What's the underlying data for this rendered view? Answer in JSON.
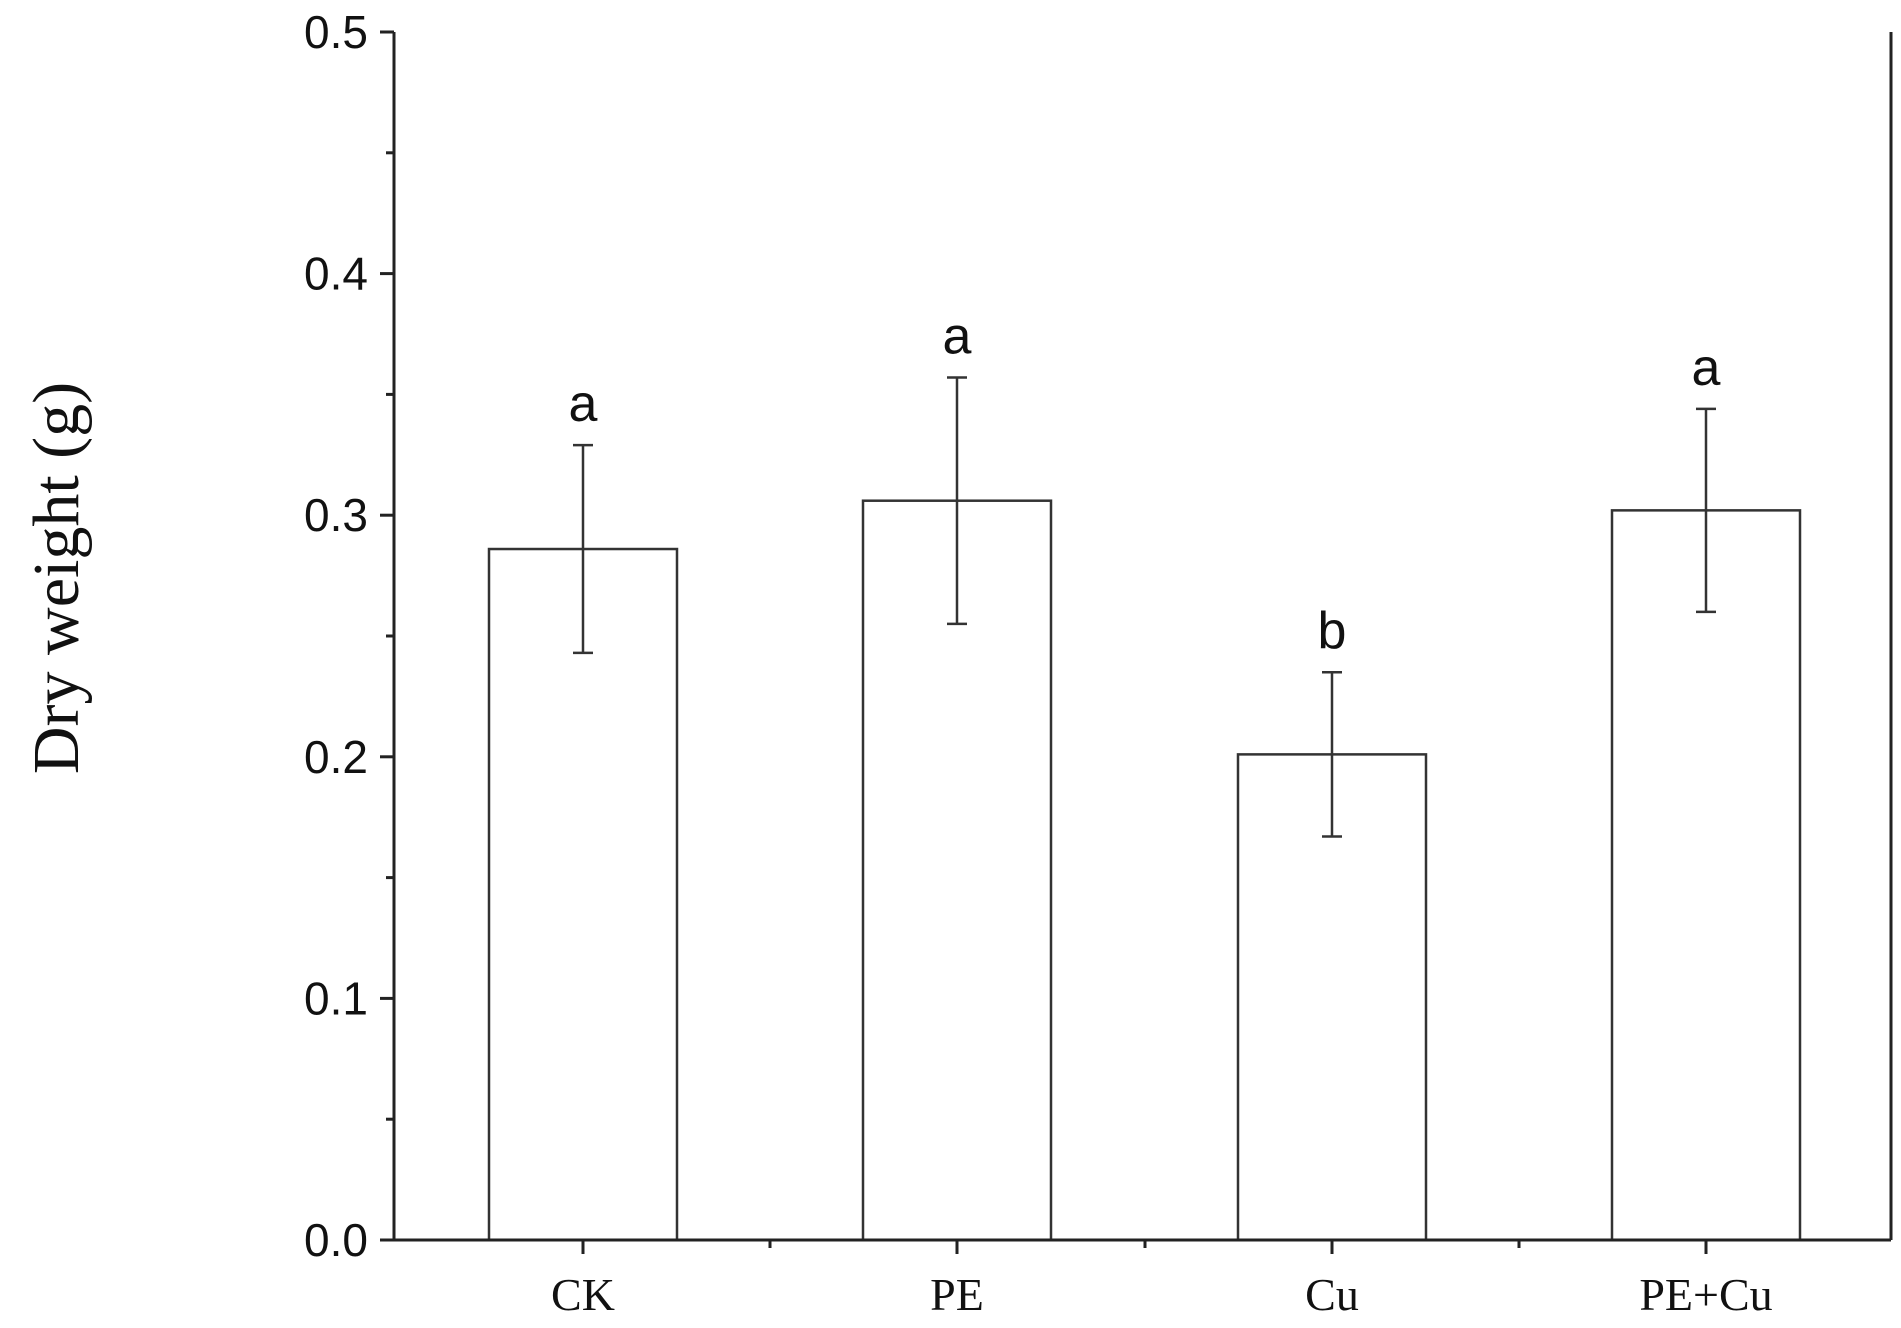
{
  "chart_data": {
    "type": "bar",
    "categories": [
      "CK",
      "PE",
      "Cu",
      "PE+Cu"
    ],
    "values": [
      0.286,
      0.306,
      0.201,
      0.302
    ],
    "errors": [
      0.043,
      0.051,
      0.034,
      0.042
    ],
    "significance_labels": [
      "a",
      "a",
      "b",
      "a"
    ],
    "xlabel": "",
    "ylabel": "Dry weight (g)",
    "ylim": [
      0.0,
      0.5
    ],
    "yticks": [
      "0.0",
      "0.1",
      "0.2",
      "0.3",
      "0.4",
      "0.5"
    ],
    "grid": false,
    "bar_fill": "#ffffff",
    "bar_stroke": "#333333"
  }
}
